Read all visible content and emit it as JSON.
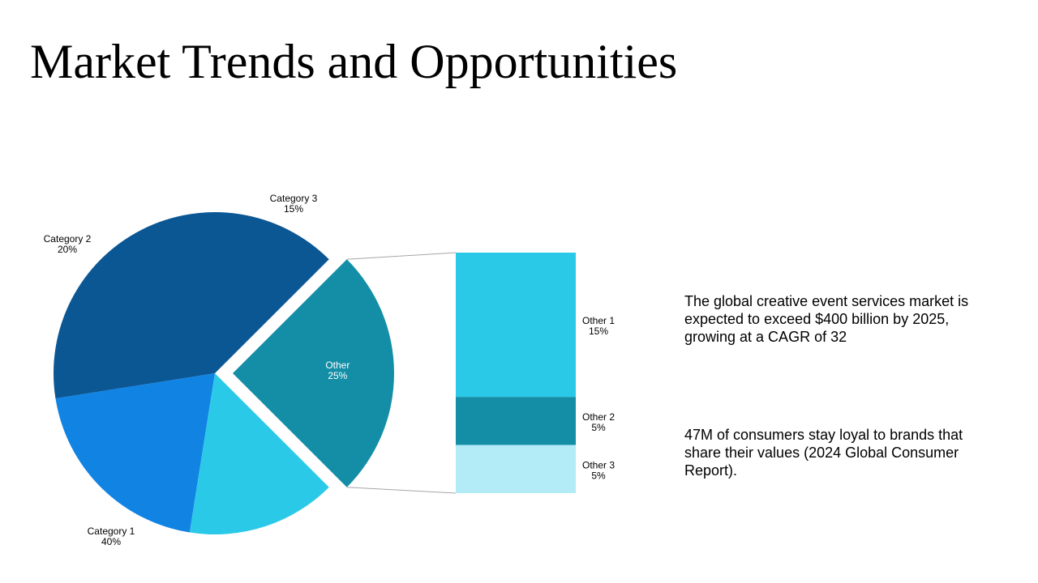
{
  "slide": {
    "title": "Market Trends and Opportunities",
    "notes": [
      "The global creative event services market is expected to exceed $400 billion by 2025, growing at a CAGR of 32",
      "47M of consumers stay loyal to brands that share their values (2024 Global Consumer Report)."
    ]
  },
  "chart_data": {
    "type": "pie",
    "subtype": "pie-of-bar",
    "slices": [
      {
        "name": "Category 1",
        "value": 40,
        "label": "40%",
        "color": "#0b5794"
      },
      {
        "name": "Category 2",
        "value": 20,
        "label": "20%",
        "color": "#1083e3"
      },
      {
        "name": "Category 3",
        "value": 15,
        "label": "15%",
        "color": "#2bc9e8"
      },
      {
        "name": "Other",
        "value": 25,
        "label": "25%",
        "color": "#138ea6"
      }
    ],
    "breakdown_of": "Other",
    "breakdown": [
      {
        "name": "Other 1",
        "value": 15,
        "label": "15%",
        "color": "#2bc9e8"
      },
      {
        "name": "Other 2",
        "value": 5,
        "label": "5%",
        "color": "#138ea6"
      },
      {
        "name": "Other 3",
        "value": 5,
        "label": "5%",
        "color": "#b3ebf6"
      }
    ],
    "connector_color": "#a6a6a6"
  }
}
